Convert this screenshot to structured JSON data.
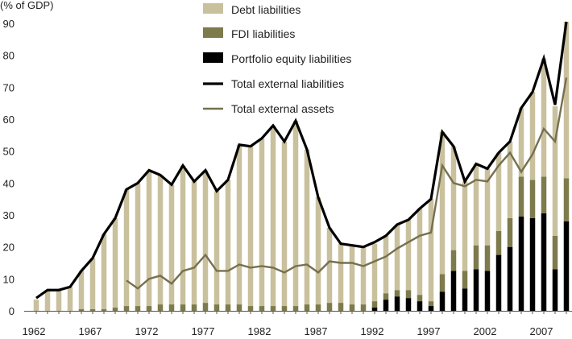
{
  "chart_data": {
    "type": "bar",
    "ylabel": "(% of GDP)",
    "ylim": [
      0,
      90
    ],
    "yticks": [
      0,
      10,
      20,
      30,
      40,
      50,
      60,
      70,
      80,
      90
    ],
    "xticks": [
      1962,
      1967,
      1972,
      1977,
      1982,
      1987,
      1992,
      1997,
      2002,
      2007
    ],
    "grid": false,
    "legend_position": "top-center",
    "colors": {
      "debt": "#c9c09e",
      "fdi": "#7d7a4c",
      "portfolio": "#000000",
      "total_liabilities": "#000000",
      "total_assets": "#76704f"
    },
    "legend": [
      {
        "key": "debt",
        "label": "Debt liabilities",
        "kind": "box"
      },
      {
        "key": "fdi",
        "label": "FDI liabilities",
        "kind": "box"
      },
      {
        "key": "portfolio",
        "label": "Portfolio equity liabilities",
        "kind": "box"
      },
      {
        "key": "total_liabilities",
        "label": "Total external liabilities",
        "kind": "line"
      },
      {
        "key": "total_assets",
        "label": "Total external assets",
        "kind": "line"
      }
    ],
    "years": [
      1962,
      1963,
      1964,
      1965,
      1966,
      1967,
      1968,
      1969,
      1970,
      1971,
      1972,
      1973,
      1974,
      1975,
      1976,
      1977,
      1978,
      1979,
      1980,
      1981,
      1982,
      1983,
      1984,
      1985,
      1986,
      1987,
      1988,
      1989,
      1990,
      1991,
      1992,
      1993,
      1994,
      1995,
      1996,
      1997,
      1998,
      1999,
      2000,
      2001,
      2002,
      2003,
      2004,
      2005,
      2006,
      2007,
      2008,
      2009
    ],
    "series": [
      {
        "name": "Portfolio equity liabilities",
        "key": "portfolio",
        "stack": "bars",
        "values": [
          0,
          0,
          0,
          0,
          0,
          0,
          0,
          0,
          0,
          0,
          0,
          0,
          0,
          0,
          0,
          0,
          0,
          0,
          0,
          0,
          0,
          0,
          0,
          0,
          0,
          0,
          0,
          0,
          0,
          0,
          1,
          3.5,
          4.5,
          4,
          3,
          1.5,
          6,
          12.5,
          7,
          13,
          12.5,
          17.5,
          20,
          29.5,
          29,
          30.5,
          13,
          28
        ]
      },
      {
        "name": "FDI liabilities",
        "key": "fdi",
        "stack": "bars",
        "values": [
          0,
          0,
          0,
          0,
          0.5,
          0.5,
          0.5,
          1,
          1.5,
          1.5,
          1.5,
          2,
          2,
          2,
          2,
          2.5,
          2,
          2,
          2,
          1.5,
          1.5,
          1.5,
          1.5,
          1.5,
          2,
          2,
          2.5,
          2.5,
          2,
          2,
          2,
          2,
          2,
          2.5,
          2,
          1.5,
          5.5,
          6.5,
          5.5,
          7.5,
          8,
          7.5,
          9,
          12.5,
          12,
          11.5,
          10.5,
          13.5
        ]
      },
      {
        "name": "Debt liabilities",
        "key": "debt",
        "stack": "bars",
        "values": [
          3.5,
          6.5,
          6.5,
          7.5,
          12,
          16,
          23.5,
          28,
          36.5,
          38.5,
          42.5,
          40.5,
          37.5,
          43.5,
          38.5,
          41.5,
          35.5,
          39,
          50,
          50,
          52.5,
          56.5,
          51.5,
          58,
          48.5,
          33.5,
          23.5,
          18.5,
          18.5,
          18,
          18,
          18,
          20.5,
          22,
          27,
          32,
          44.5,
          32.5,
          28,
          25.5,
          24,
          24.5,
          24,
          21.5,
          27.5,
          37,
          40.5,
          49
        ]
      },
      {
        "name": "Total external liabilities",
        "key": "total_liabilities",
        "kind": "line",
        "values": [
          4,
          6.5,
          6.5,
          7.5,
          12.5,
          16.5,
          24,
          29,
          38,
          40,
          44,
          42.5,
          39.5,
          45.5,
          40.5,
          44,
          37.5,
          41,
          52,
          51.5,
          54,
          58,
          53,
          59.5,
          50.5,
          35.5,
          26,
          21,
          20.5,
          20,
          21.5,
          23.5,
          27,
          28.5,
          32,
          35,
          56,
          51.5,
          40.5,
          46,
          44.5,
          49.5,
          53,
          63.5,
          68.5,
          79,
          64.5,
          90.5
        ]
      },
      {
        "name": "Total external assets",
        "key": "total_assets",
        "kind": "line",
        "start_year": 1970,
        "values": [
          9.5,
          7,
          10,
          11,
          8.5,
          12.5,
          13.5,
          17.5,
          12.5,
          12.5,
          14.5,
          13.5,
          14,
          13.5,
          12,
          14,
          14.5,
          12,
          15.5,
          15,
          15,
          14,
          15.5,
          17,
          19.5,
          21.5,
          23.5,
          24.5,
          45.5,
          40,
          39,
          41,
          40.5,
          45.5,
          49.5,
          43.5,
          49,
          57,
          53,
          73
        ]
      }
    ]
  }
}
